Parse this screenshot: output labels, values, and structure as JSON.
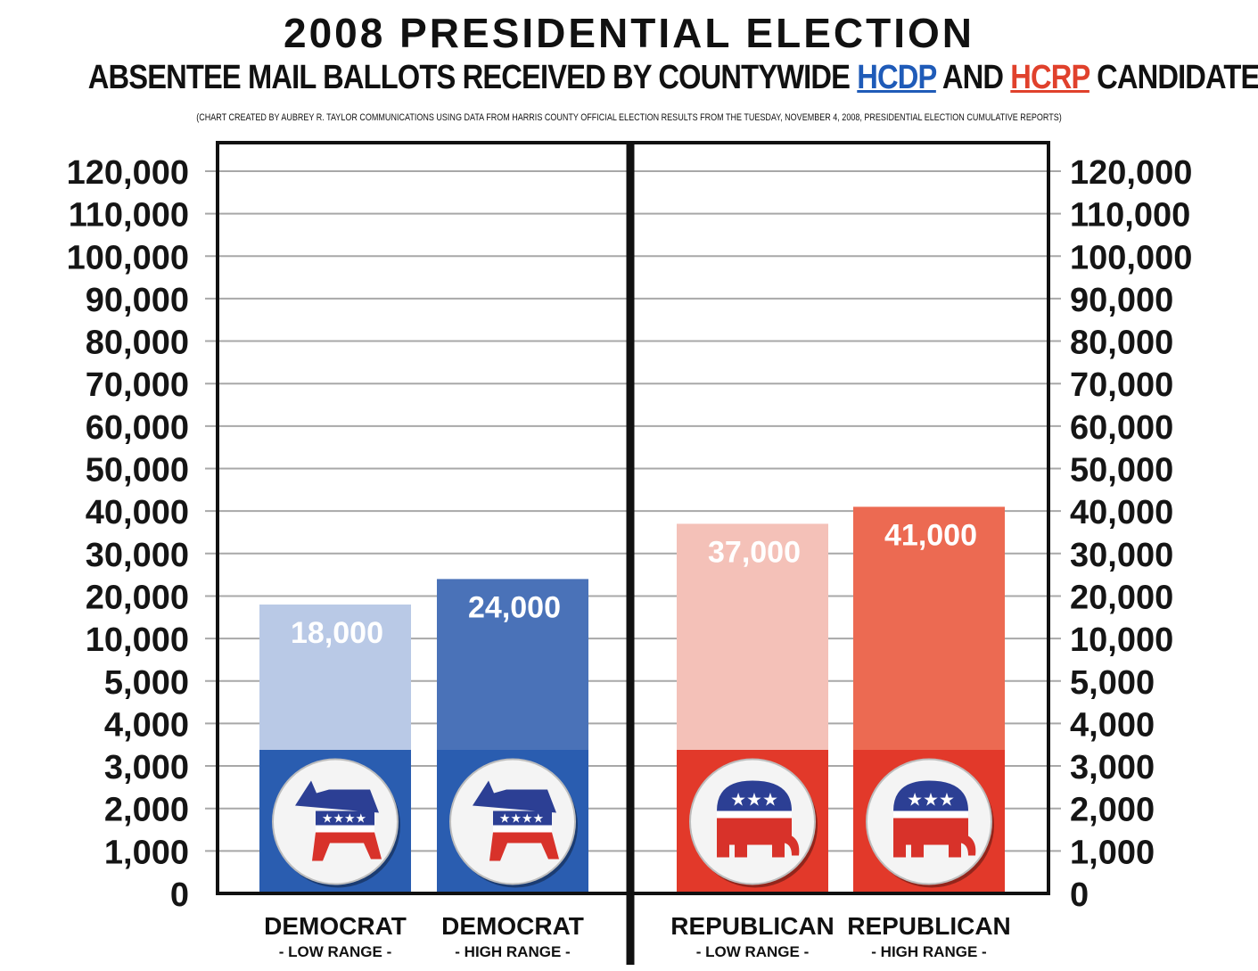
{
  "header": {
    "title": "2008 PRESIDENTIAL ELECTION",
    "subtitle_before": "ABSENTEE MAIL BALLOTS RECEIVED BY COUNTYWIDE ",
    "subtitle_hcdp": "HCDP",
    "subtitle_and": " AND ",
    "subtitle_hcrp": "HCRP",
    "subtitle_after": " CANDIDATES",
    "note": "(CHART CREATED BY AUBREY R. TAYLOR COMMUNICATIONS USING DATA FROM HARRIS COUNTY OFFICIAL ELECTION RESULTS FROM THE TUESDAY, NOVEMBER 4, 2008, PRESIDENTIAL ELECTION CUMULATIVE REPORTS)"
  },
  "chart_data": {
    "type": "bar",
    "title": "2008 PRESIDENTIAL ELECTION",
    "categories": [
      "DEMOCRAT - LOW RANGE -",
      "DEMOCRAT - HIGH RANGE -",
      "REPUBLICAN - LOW RANGE -",
      "REPUBLICAN - HIGH RANGE -"
    ],
    "category_main": [
      "DEMOCRAT",
      "DEMOCRAT",
      "REPUBLICAN",
      "REPUBLICAN"
    ],
    "category_sub": [
      "- LOW RANGE -",
      "- HIGH RANGE -",
      "- LOW RANGE -",
      "- HIGH RANGE -"
    ],
    "values": [
      18000,
      24000,
      37000,
      41000
    ],
    "value_labels": [
      "18,000",
      "24,000",
      "37,000",
      "41,000"
    ],
    "y_ticks": [
      0,
      1000,
      2000,
      3000,
      4000,
      5000,
      10000,
      20000,
      30000,
      40000,
      50000,
      60000,
      70000,
      80000,
      90000,
      100000,
      110000,
      120000
    ],
    "y_tick_labels": [
      "0",
      "1,000",
      "2,000",
      "3,000",
      "4,000",
      "5,000",
      "10,000",
      "20,000",
      "30,000",
      "40,000",
      "50,000",
      "60,000",
      "70,000",
      "80,000",
      "90,000",
      "100,000",
      "110,000",
      "120,000"
    ],
    "y_scale": "non-linear (evenly spaced ticks)",
    "grid": true,
    "bar_colors": [
      "#b9c9e6",
      "#4a72b8",
      "#f4c1b8",
      "#ec6a52"
    ],
    "emblem_colors": [
      "#2a5db0",
      "#2a5db0",
      "#e2392a",
      "#e2392a"
    ],
    "emblem_icons": [
      "democratic-donkey-icon",
      "democratic-donkey-icon",
      "republican-elephant-icon",
      "republican-elephant-icon"
    ]
  }
}
